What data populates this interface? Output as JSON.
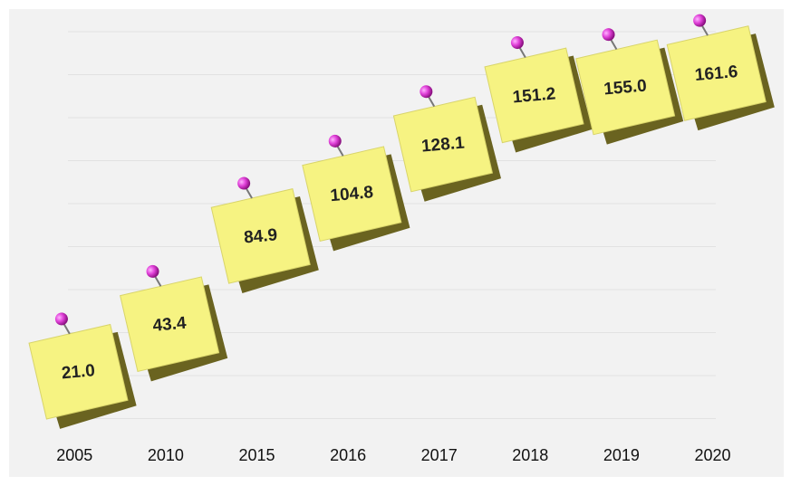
{
  "chart_data": {
    "type": "sticky-note",
    "categories": [
      "2005",
      "2010",
      "2015",
      "2016",
      "2017",
      "2018",
      "2019",
      "2020"
    ],
    "values": [
      21.0,
      43.4,
      84.9,
      104.8,
      128.1,
      151.2,
      155.0,
      161.6
    ],
    "value_labels": [
      "21.0",
      "43.4",
      "84.9",
      "104.8",
      "128.1",
      "151.2",
      "155.0",
      "161.6"
    ],
    "color": "#f6f382",
    "grid": true
  }
}
